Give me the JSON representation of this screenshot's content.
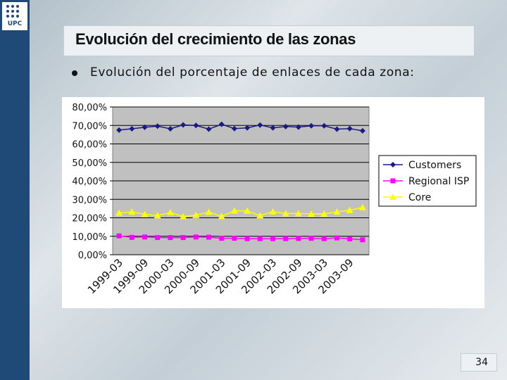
{
  "logo": {
    "text": "UPC"
  },
  "slide": {
    "title": "Evolución del crecimiento de las zonas",
    "bullet": "Evolución del porcentaje de enlaces de cada zona:",
    "page_number": "34"
  },
  "chart_data": {
    "type": "line",
    "title": "",
    "xlabel": "",
    "ylabel": "",
    "ylim": [
      0,
      80
    ],
    "y_ticks": [
      "0,00%",
      "10,00%",
      "20,00%",
      "30,00%",
      "40,00%",
      "50,00%",
      "60,00%",
      "70,00%",
      "80,00%"
    ],
    "x_tick_labels": [
      "1999-03",
      "1999-09",
      "2000-03",
      "2000-09",
      "2001-03",
      "2001-09",
      "2002-03",
      "2002-09",
      "2003-03",
      "2003-09"
    ],
    "grid": true,
    "legend_position": "right",
    "series": [
      {
        "name": "Customers",
        "color": "#1a1a80",
        "marker": "diamond",
        "values": [
          67.5,
          68.2,
          69.0,
          69.6,
          68.2,
          70.3,
          70.0,
          68.0,
          70.6,
          68.3,
          68.7,
          70.2,
          68.7,
          69.4,
          69.1,
          69.8,
          69.8,
          68.0,
          68.3,
          67.1
        ]
      },
      {
        "name": "Regional ISP",
        "color": "#ff00ff",
        "marker": "square",
        "values": [
          10.2,
          9.4,
          9.6,
          9.3,
          9.3,
          9.3,
          9.6,
          9.5,
          8.9,
          8.9,
          8.7,
          8.7,
          8.7,
          8.7,
          8.8,
          8.9,
          8.7,
          9.1,
          8.6,
          8.1
        ]
      },
      {
        "name": "Core",
        "color": "#ffff00",
        "marker": "triangle",
        "values": [
          22.6,
          23.2,
          21.9,
          21.2,
          22.9,
          20.7,
          21.4,
          23.1,
          20.8,
          23.8,
          23.7,
          21.2,
          23.3,
          22.3,
          22.4,
          22.1,
          22.1,
          23.2,
          24.1,
          25.6
        ]
      }
    ]
  }
}
